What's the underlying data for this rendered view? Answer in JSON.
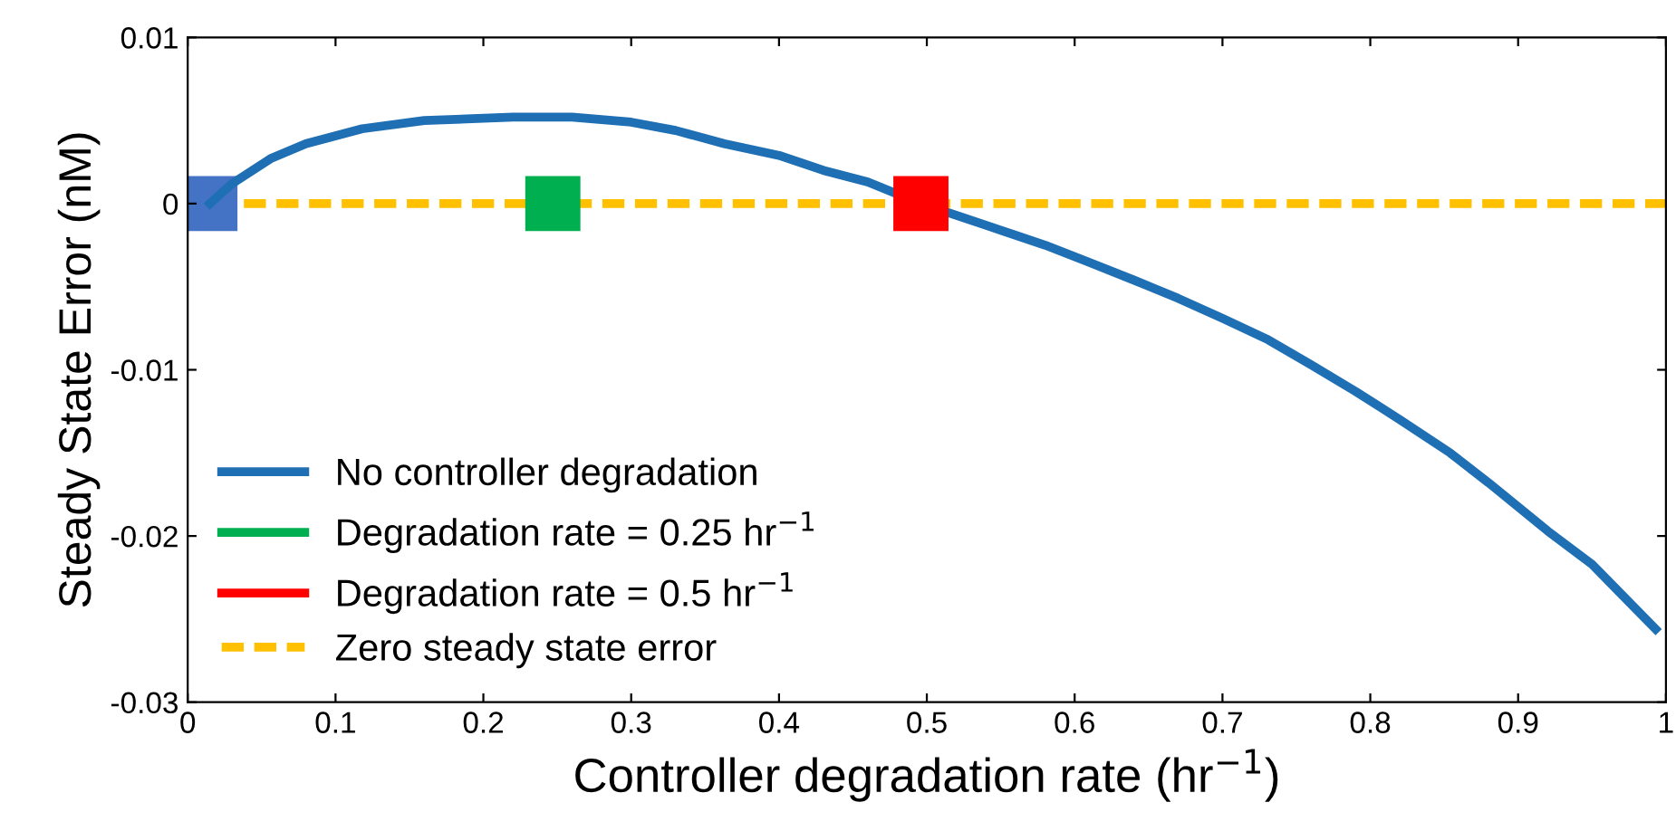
{
  "chart_data": {
    "type": "line",
    "xlabel": "Controller degradation rate (hr$^{−1}$)",
    "ylabel": "Steady State Error (nM)",
    "xlim": [
      0,
      1
    ],
    "ylim": [
      -0.03,
      0.01
    ],
    "xticks": [
      0,
      0.1,
      0.2,
      0.3,
      0.4,
      0.5,
      0.6,
      0.7,
      0.8,
      0.9,
      1
    ],
    "yticks": [
      -0.03,
      -0.02,
      -0.01,
      0,
      0.01
    ],
    "grid": false,
    "legend": "bottom left",
    "series": [
      {
        "name": "No controller degradation",
        "color": "#1f6fb4",
        "line_style": "solid",
        "x": [
          0.015,
          0.03,
          0.056,
          0.08,
          0.118,
          0.16,
          0.22,
          0.26,
          0.3,
          0.33,
          0.363,
          0.4,
          0.43,
          0.46,
          0.496,
          0.52,
          0.55,
          0.58,
          0.609,
          0.64,
          0.67,
          0.7,
          0.731,
          0.76,
          0.79,
          0.82,
          0.854,
          0.88,
          0.92,
          0.95,
          0.993
        ],
        "values": [
          0.0,
          0.0012,
          0.0027,
          0.0036,
          0.0045,
          0.005,
          0.0052,
          0.0052,
          0.0049,
          0.0044,
          0.0036,
          0.0029,
          0.002,
          0.0013,
          0.0,
          -0.0007,
          -0.0016,
          -0.0025,
          -0.0035,
          -0.0046,
          -0.0057,
          -0.0069,
          -0.0082,
          -0.0097,
          -0.0113,
          -0.013,
          -0.015,
          -0.0168,
          -0.0197,
          -0.0217,
          -0.0256
        ]
      },
      {
        "name": "Degradation rate = 0.25 hr$^{−1}$",
        "type": "scatter",
        "marker": "square",
        "color": "#00b050",
        "x": [
          0.247
        ],
        "values": [
          0
        ]
      },
      {
        "name": "Degradation rate = 0.5 hr$^{−1}$",
        "type": "scatter",
        "marker": "square",
        "color": "#ff0000",
        "x": [
          0.496
        ],
        "values": [
          0
        ]
      },
      {
        "name": "Zero steady state error",
        "color": "#ffc000",
        "line_style": "dashed",
        "x": [
          0.038,
          1
        ],
        "values": [
          0,
          0
        ]
      },
      {
        "type": "scatter",
        "marker": "square",
        "color": "#4472c4",
        "x": [
          0.015
        ],
        "values": [
          0
        ]
      }
    ]
  }
}
